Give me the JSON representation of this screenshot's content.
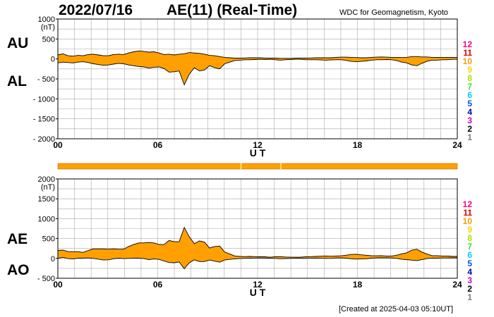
{
  "header": {
    "date": "2022/07/16",
    "title": "AE(11) (Real-Time)",
    "org": "WDC for Geomagnetism, Kyoto"
  },
  "footer": {
    "created": "[Created at 2025-04-03 05:10UT]"
  },
  "colors": {
    "fill": "#ffa000",
    "bar": "#ffa000",
    "bar_markers": "#ffff80",
    "grid": "#aaaaaa"
  },
  "chart_data": [
    {
      "type": "area",
      "id": "AU-AL",
      "series": [
        {
          "name": "AU",
          "values": [
            100,
            130,
            80,
            70,
            90,
            80,
            110,
            120,
            100,
            80,
            80,
            110,
            120,
            110,
            150,
            180,
            200,
            190,
            170,
            180,
            150,
            110,
            120,
            100,
            120,
            130,
            160,
            150,
            140,
            120,
            90,
            80,
            60,
            40,
            30,
            20,
            20,
            25,
            30,
            30,
            30,
            25,
            20,
            20,
            15,
            15,
            15,
            20,
            20,
            20,
            25,
            30,
            30,
            30,
            30,
            40,
            45,
            45,
            40,
            35,
            30,
            30,
            40,
            45,
            50,
            45,
            40,
            40,
            35,
            40,
            60,
            60,
            50,
            50,
            40,
            40,
            40,
            40,
            40,
            40
          ]
        },
        {
          "name": "AL",
          "values": [
            -100,
            -80,
            -90,
            -100,
            -80,
            -70,
            -90,
            -120,
            -140,
            -160,
            -150,
            -130,
            -110,
            -120,
            -150,
            -170,
            -190,
            -200,
            -230,
            -210,
            -200,
            -240,
            -330,
            -320,
            -300,
            -650,
            -380,
            -220,
            -300,
            -280,
            -170,
            -220,
            -250,
            -120,
            -80,
            -40,
            -30,
            -20,
            -20,
            -15,
            -10,
            -15,
            -10,
            -20,
            -30,
            -20,
            -15,
            -10,
            -10,
            -20,
            -20,
            -20,
            -25,
            -30,
            -25,
            -20,
            -20,
            -35,
            -60,
            -70,
            -60,
            -50,
            -30,
            -20,
            -20,
            -15,
            -20,
            -40,
            -80,
            -100,
            -150,
            -170,
            -110,
            -60,
            -30,
            -30,
            -20,
            -20,
            -10,
            -10
          ]
        }
      ],
      "x_range": [
        0,
        24
      ],
      "xticks": [
        0,
        6,
        12,
        18,
        24
      ],
      "xtick_labels": [
        "00",
        "06",
        "12",
        "18",
        "24"
      ],
      "xlabel": "U T",
      "ylim": [
        -2000,
        1000
      ],
      "yticks": [
        1000,
        500,
        0,
        -500,
        -1000,
        -1500,
        -2000
      ],
      "ytick_labels": [
        "1000",
        "500",
        "0",
        "- 500",
        "- 1000",
        "- 1500",
        "- 2000"
      ],
      "yunit": "(nT)",
      "labels": {
        "upper": "AU",
        "lower": "AL"
      },
      "grid": true,
      "legend": [
        "12",
        "11",
        "10",
        "9",
        "8",
        "7",
        "6",
        "5",
        "4",
        "3",
        "2",
        "1"
      ]
    },
    {
      "type": "area",
      "id": "AE-AO",
      "series": [
        {
          "name": "AE",
          "values": [
            200,
            210,
            170,
            170,
            170,
            150,
            200,
            240,
            240,
            240,
            230,
            240,
            230,
            230,
            300,
            350,
            390,
            390,
            400,
            390,
            350,
            350,
            450,
            420,
            420,
            780,
            540,
            370,
            440,
            410,
            260,
            300,
            310,
            160,
            110,
            60,
            50,
            45,
            50,
            45,
            40,
            40,
            30,
            40,
            45,
            35,
            30,
            30,
            30,
            40,
            45,
            50,
            55,
            60,
            55,
            60,
            65,
            80,
            100,
            105,
            90,
            80,
            70,
            65,
            70,
            60,
            60,
            80,
            115,
            140,
            210,
            230,
            160,
            110,
            70,
            70,
            60,
            60,
            50,
            50
          ]
        },
        {
          "name": "AO",
          "values": [
            0,
            25,
            -5,
            -15,
            5,
            5,
            10,
            0,
            -20,
            -40,
            -35,
            -10,
            5,
            -5,
            0,
            5,
            5,
            -5,
            -30,
            -15,
            -25,
            -65,
            -105,
            -110,
            -90,
            -260,
            -110,
            -35,
            -80,
            -80,
            -40,
            -70,
            -95,
            -40,
            -25,
            -10,
            -5,
            2,
            5,
            8,
            10,
            5,
            5,
            0,
            -8,
            -3,
            0,
            5,
            5,
            0,
            2,
            5,
            3,
            0,
            2,
            10,
            12,
            5,
            -10,
            -17,
            -15,
            -10,
            5,
            12,
            15,
            15,
            10,
            0,
            -23,
            -30,
            -45,
            -55,
            -30,
            -5,
            5,
            5,
            10,
            10,
            15,
            15
          ]
        }
      ],
      "x_range": [
        0,
        24
      ],
      "xticks": [
        0,
        6,
        12,
        18,
        24
      ],
      "xtick_labels": [
        "00",
        "06",
        "12",
        "18",
        "24"
      ],
      "xlabel": "U T",
      "ylim": [
        -500,
        2000
      ],
      "yticks": [
        2000,
        1500,
        1000,
        500,
        0,
        -500
      ],
      "ytick_labels": [
        "2000",
        "1500",
        "1000",
        "500",
        "0",
        "- 500"
      ],
      "yunit": "(nT)",
      "labels": {
        "upper": "AE",
        "lower": "AO"
      },
      "grid": true,
      "legend": [
        "12",
        "11",
        "10",
        "9",
        "8",
        "7",
        "6",
        "5",
        "4",
        "3",
        "2",
        "1"
      ]
    }
  ],
  "station_bar": {
    "hours_with_marker": [
      11.0,
      13.4
    ]
  }
}
